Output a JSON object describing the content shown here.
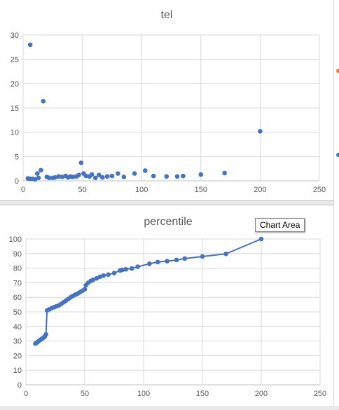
{
  "chart_data": [
    {
      "type": "scatter",
      "title": "tel",
      "xlabel": "",
      "ylabel": "",
      "xlim": [
        0,
        250
      ],
      "ylim": [
        0,
        30
      ],
      "x_ticks": [
        0,
        50,
        100,
        150,
        200,
        250
      ],
      "y_ticks": [
        0,
        5,
        10,
        15,
        20,
        25,
        30
      ],
      "grid": true,
      "color": "#4472c4",
      "points": [
        [
          6,
          28.0
        ],
        [
          17,
          16.4
        ],
        [
          200,
          10.2
        ],
        [
          49,
          3.7
        ],
        [
          15,
          2.2
        ],
        [
          103,
          2.1
        ],
        [
          170,
          1.6
        ],
        [
          12,
          1.5
        ],
        [
          51,
          1.5
        ],
        [
          80,
          1.5
        ],
        [
          94,
          1.5
        ],
        [
          150,
          1.3
        ],
        [
          58,
          1.3
        ],
        [
          64,
          1.2
        ],
        [
          71,
          0.9
        ],
        [
          85,
          0.8
        ],
        [
          110,
          1.0
        ],
        [
          121,
          0.9
        ],
        [
          130,
          0.9
        ],
        [
          135,
          1.0
        ],
        [
          4,
          0.5
        ],
        [
          6,
          0.4
        ],
        [
          8,
          0.4
        ],
        [
          10,
          0.3
        ],
        [
          13,
          0.6
        ],
        [
          20,
          0.8
        ],
        [
          22,
          0.6
        ],
        [
          25,
          0.6
        ],
        [
          27,
          0.7
        ],
        [
          30,
          0.9
        ],
        [
          33,
          0.8
        ],
        [
          36,
          1.0
        ],
        [
          38,
          0.7
        ],
        [
          40,
          0.9
        ],
        [
          42,
          0.8
        ],
        [
          45,
          0.9
        ],
        [
          47,
          1.2
        ],
        [
          53,
          1.0
        ],
        [
          56,
          0.9
        ],
        [
          61,
          0.6
        ],
        [
          67,
          0.7
        ],
        [
          75,
          1.0
        ]
      ]
    },
    {
      "type": "line",
      "title": "percentile",
      "xlabel": "",
      "ylabel": "",
      "xlim": [
        0,
        250
      ],
      "ylim": [
        0,
        100
      ],
      "x_ticks": [
        0,
        50,
        100,
        150,
        200,
        250
      ],
      "y_ticks": [
        0,
        10,
        20,
        30,
        40,
        50,
        60,
        70,
        80,
        90,
        100
      ],
      "grid": true,
      "color": "#4472c4",
      "points": [
        [
          8,
          28.2
        ],
        [
          9,
          28.8
        ],
        [
          10,
          29.4
        ],
        [
          11,
          30.0
        ],
        [
          12,
          30.6
        ],
        [
          13,
          31.2
        ],
        [
          14,
          31.8
        ],
        [
          15,
          32.4
        ],
        [
          16,
          33.0
        ],
        [
          17,
          34.6
        ],
        [
          18,
          51.0
        ],
        [
          20,
          51.8
        ],
        [
          22,
          52.6
        ],
        [
          24,
          53.2
        ],
        [
          26,
          53.8
        ],
        [
          28,
          54.4
        ],
        [
          30,
          55.5
        ],
        [
          32,
          56.6
        ],
        [
          34,
          57.7
        ],
        [
          36,
          58.8
        ],
        [
          38,
          60.0
        ],
        [
          40,
          61.0
        ],
        [
          42,
          61.8
        ],
        [
          44,
          62.6
        ],
        [
          46,
          63.5
        ],
        [
          48,
          64.5
        ],
        [
          50,
          65.5
        ],
        [
          51,
          68.3
        ],
        [
          53,
          70.0
        ],
        [
          55,
          71.2
        ],
        [
          57,
          72.0
        ],
        [
          60,
          73.0
        ],
        [
          63,
          74.1
        ],
        [
          66,
          74.9
        ],
        [
          70,
          75.6
        ],
        [
          75,
          76.6
        ],
        [
          80,
          78.4
        ],
        [
          82,
          78.8
        ],
        [
          85,
          79.2
        ],
        [
          90,
          79.8
        ],
        [
          95,
          81.0
        ],
        [
          105,
          83.0
        ],
        [
          112,
          84.2
        ],
        [
          120,
          84.8
        ],
        [
          128,
          85.6
        ],
        [
          135,
          86.6
        ],
        [
          150,
          88.0
        ],
        [
          170,
          89.8
        ],
        [
          200,
          100.0
        ]
      ]
    }
  ],
  "tooltip": "Chart Area"
}
